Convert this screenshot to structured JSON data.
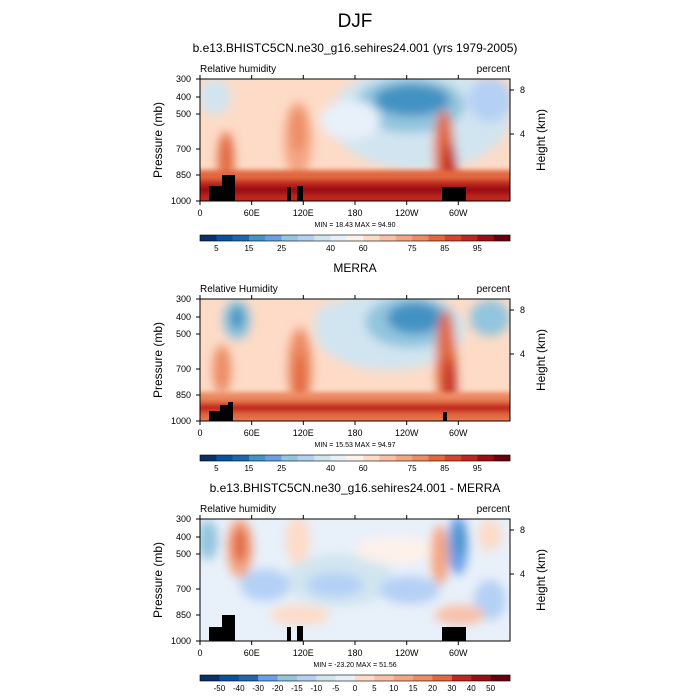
{
  "figure_title": "DJF",
  "colors": {
    "bwr": [
      "#08306b",
      "#08519c",
      "#2166ac",
      "#4393c3",
      "#6a9fe8",
      "#92c5de",
      "#b4d0f5",
      "#d1e5f0",
      "#e8f0fa",
      "#fdf1ea",
      "#fddbc7",
      "#f9c0a8",
      "#f4a582",
      "#ec8b64",
      "#e2673f",
      "#d6452b",
      "#c0261f",
      "#9a0f13",
      "#67000d"
    ],
    "topo": "#000000"
  },
  "chart_data": [
    {
      "type": "heatmap",
      "panel": "model",
      "title": "b.e13.BHISTC5CN.ne30_g16.sehires24.001 (yrs 1979-2005)",
      "left_label": "Relative humidity",
      "right_label": "percent",
      "ylabel": "Pressure (mb)",
      "y2label": "Height (km)",
      "xticks": [
        "0",
        "60E",
        "120E",
        "180",
        "120W",
        "60W"
      ],
      "yticks": [
        "300",
        "400",
        "500",
        "700",
        "850",
        "1000"
      ],
      "y2ticks": [
        "8",
        "4"
      ],
      "min_max_text": "MIN = 18.43  MAX = 94.90",
      "colorbar_labels": [
        "5",
        "15",
        "25",
        "40",
        "60",
        "75",
        "85",
        "95"
      ],
      "colorbar_levels": [
        5,
        10,
        15,
        20,
        25,
        30,
        35,
        40,
        50,
        60,
        65,
        70,
        75,
        80,
        85,
        90,
        95,
        100
      ],
      "xlim": [
        0,
        360
      ],
      "ylim": [
        1000,
        300
      ]
    },
    {
      "type": "heatmap",
      "panel": "obs",
      "title": "MERRA",
      "left_label": "Relative Humidity",
      "right_label": "percent",
      "ylabel": "Pressure (mb)",
      "y2label": "Height (km)",
      "xticks": [
        "0",
        "60E",
        "120E",
        "180",
        "120W",
        "60W"
      ],
      "yticks": [
        "300",
        "400",
        "500",
        "700",
        "850",
        "1000"
      ],
      "y2ticks": [
        "8",
        "4"
      ],
      "min_max_text": "MIN = 15.53  MAX = 94.97",
      "colorbar_labels": [
        "5",
        "15",
        "25",
        "40",
        "60",
        "75",
        "85",
        "95"
      ],
      "colorbar_levels": [
        5,
        10,
        15,
        20,
        25,
        30,
        35,
        40,
        50,
        60,
        65,
        70,
        75,
        80,
        85,
        90,
        95,
        100
      ],
      "xlim": [
        0,
        360
      ],
      "ylim": [
        1000,
        300
      ]
    },
    {
      "type": "heatmap",
      "panel": "diff",
      "title": "b.e13.BHISTC5CN.ne30_g16.sehires24.001 - MERRA",
      "left_label": "Relative humidity",
      "right_label": "percent",
      "ylabel": "Pressure (mb)",
      "y2label": "Height (km)",
      "xticks": [
        "0",
        "60E",
        "120E",
        "180",
        "120W",
        "60W"
      ],
      "yticks": [
        "300",
        "400",
        "500",
        "700",
        "850",
        "1000"
      ],
      "y2ticks": [
        "8",
        "4"
      ],
      "min_max_text": "MIN = -23.20  MAX = 51.56",
      "colorbar_labels": [
        "-50",
        "-40",
        "-30",
        "-20",
        "-15",
        "-10",
        "-5",
        "0",
        "5",
        "10",
        "15",
        "20",
        "30",
        "40",
        "50"
      ],
      "colorbar_levels": [
        -50,
        -40,
        -30,
        -20,
        -15,
        -10,
        -5,
        0,
        5,
        10,
        15,
        20,
        30,
        40,
        50
      ],
      "xlim": [
        0,
        360
      ],
      "ylim": [
        1000,
        300
      ]
    }
  ]
}
